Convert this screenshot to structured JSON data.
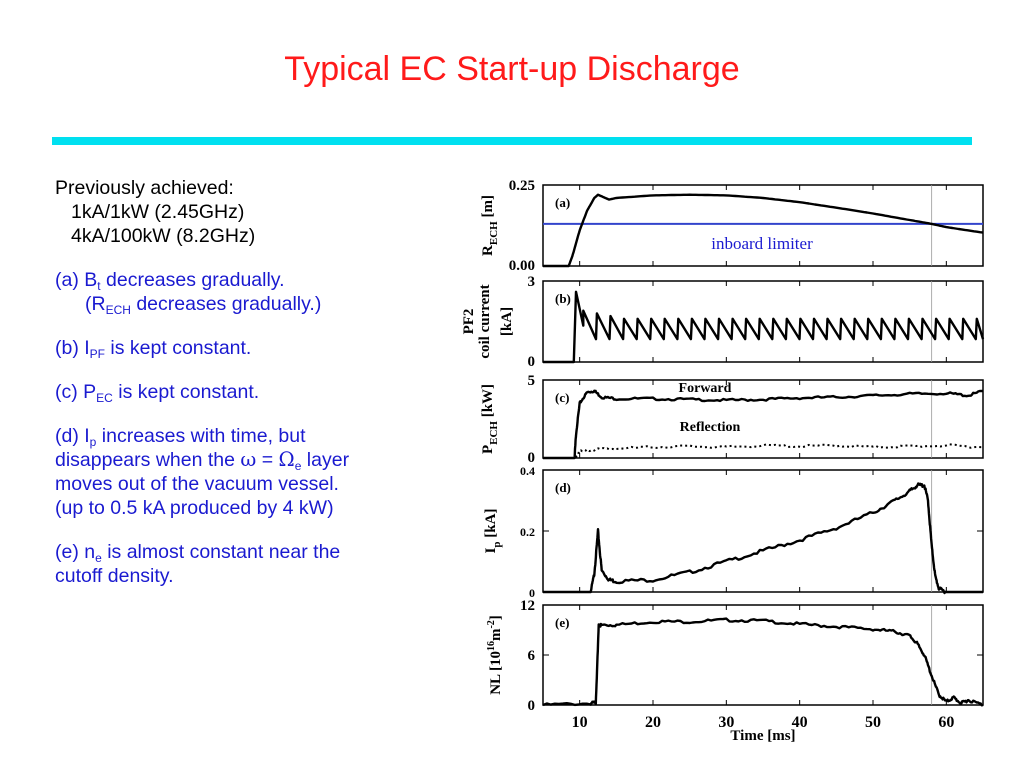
{
  "slide": {
    "title": "Typical EC Start-up Discharge",
    "accent_color": "#00e0f0",
    "title_color": "#ff1a1a",
    "text_color": "#1a1ad0"
  },
  "notes": {
    "prev_label": "Previously achieved:",
    "prev_1": "1kA/1kW (2.45GHz)",
    "prev_2": "4kA/100kW (8.2GHz)",
    "a_line1_pre": "(a) B",
    "a_line1_sub": "t",
    "a_line1_post": " decreases gradually.",
    "a_line2_pre": "(R",
    "a_line2_sub": "ECH",
    "a_line2_post": " decreases gradually.)",
    "b_pre": "(b) I",
    "b_sub": "PF",
    "b_post": " is kept constant.",
    "c_pre": "(c) P",
    "c_sub": "EC",
    "c_post": " is kept constant.",
    "d_pre": "(d) I",
    "d_sub": "p",
    "d_post": " increases with time, but",
    "d_line2_pre": "disappears when the ",
    "d_omega": "ω",
    "d_eq": " = ",
    "d_Omega": "Ω",
    "d_Omega_sub": "e",
    "d_line2_post": " layer",
    "d_line3": "moves out of the vacuum vessel.",
    "d_line4": "(up to 0.5 kA produced by 4 kW)",
    "e_pre": "(e) n",
    "e_sub": "e",
    "e_post": " is almost constant near the",
    "e_line2": "cutoff density."
  },
  "chart_data": {
    "type": "line",
    "x_label": "Time [ms]",
    "x_ticks": [
      10,
      20,
      30,
      40,
      50,
      60
    ],
    "xlim": [
      5,
      65
    ],
    "vertical_marker_x": 58,
    "panels": [
      {
        "id": "a",
        "tag": "(a)",
        "ylabel_main": "R",
        "ylabel_sub": "ECH",
        "ylabel_unit": "[m]",
        "yticks": [
          "0.25",
          "0.00"
        ],
        "ylim": [
          0,
          0.25
        ],
        "annotation": "inboard limiter",
        "limiter_value": 0.13,
        "limiter_color": "#3344cc",
        "series": [
          {
            "style": "solid",
            "x": [
              5,
              8.5,
              9,
              10,
              11,
              12,
              12.5,
              13,
              14,
              15,
              20,
              25,
              30,
              35,
              40,
              45,
              50,
              55,
              58,
              60,
              65
            ],
            "y": [
              0,
              0,
              0.03,
              0.11,
              0.17,
              0.21,
              0.22,
              0.215,
              0.205,
              0.21,
              0.218,
              0.22,
              0.218,
              0.21,
              0.197,
              0.18,
              0.162,
              0.142,
              0.13,
              0.12,
              0.103
            ]
          }
        ]
      },
      {
        "id": "b",
        "tag": "(b)",
        "ylabel_line1": "PF2",
        "ylabel_line2": "coil current",
        "ylabel_line3": "[kA]",
        "yticks": [
          "3",
          "0"
        ],
        "ylim": [
          0,
          3
        ],
        "series": [
          {
            "style": "sawtooth",
            "baseline_before": 0,
            "rise_at": 9.2,
            "peak": 2.6,
            "sawtooth_low": 0.85,
            "sawtooth_high": 1.6,
            "period_ms": 1.85,
            "start": 10.5,
            "end": 65
          }
        ]
      },
      {
        "id": "c",
        "tag": "(c)",
        "ylabel_main": "P",
        "ylabel_sub": "ECH",
        "ylabel_unit": "[kW]",
        "yticks": [
          "5",
          "0"
        ],
        "ylim": [
          0,
          5
        ],
        "series": [
          {
            "name": "Forward",
            "style": "solid",
            "x": [
              5,
              9.3,
              9.5,
              10,
              11,
              12,
              13,
              15,
              20,
              25,
              30,
              35,
              40,
              45,
              50,
              55,
              60,
              63,
              65
            ],
            "y": [
              0,
              0,
              1.5,
              3.5,
              4.2,
              4.3,
              3.9,
              3.8,
              3.8,
              3.75,
              3.7,
              3.75,
              3.85,
              3.9,
              4.0,
              4.1,
              4.15,
              4.0,
              4.3
            ]
          },
          {
            "name": "Reflection",
            "style": "dotted",
            "x": [
              5,
              9.3,
              10,
              12,
              15,
              20,
              25,
              30,
              35,
              40,
              45,
              50,
              55,
              60,
              65
            ],
            "y": [
              0,
              0,
              0.4,
              0.55,
              0.6,
              0.7,
              0.75,
              0.7,
              0.8,
              0.75,
              0.8,
              0.7,
              0.75,
              0.8,
              0.7
            ]
          }
        ]
      },
      {
        "id": "d",
        "tag": "(d)",
        "ylabel_main": "I",
        "ylabel_sub": "p",
        "ylabel_unit": "[kA]",
        "yticks": [
          "0.4",
          "0.2",
          "0"
        ],
        "ytick_values": [
          0.4,
          0.2,
          0
        ],
        "ylim": [
          0,
          0.4
        ],
        "series": [
          {
            "style": "solid",
            "x": [
              5,
              11.5,
              12,
              12.5,
              13,
              14,
              15,
              20,
              25,
              30,
              35,
              40,
              45,
              50,
              53,
              55,
              56,
              57,
              57.5,
              58,
              58.5,
              59,
              60,
              65
            ],
            "y": [
              0,
              0,
              0.06,
              0.2,
              0.07,
              0.04,
              0.035,
              0.04,
              0.065,
              0.1,
              0.135,
              0.17,
              0.21,
              0.26,
              0.3,
              0.33,
              0.35,
              0.35,
              0.3,
              0.15,
              0.05,
              0.01,
              0,
              0
            ]
          }
        ]
      },
      {
        "id": "e",
        "tag": "(e)",
        "ylabel_main": "NL [10",
        "ylabel_sup": "16",
        "ylabel_unit": "m",
        "ylabel_unit_sup": "-2",
        "ylabel_close": "]",
        "yticks": [
          "12",
          "6",
          "0"
        ],
        "ytick_values": [
          12,
          6,
          0
        ],
        "ylim": [
          0,
          12
        ],
        "series": [
          {
            "style": "solid",
            "x": [
              5,
              11.5,
              12.2,
              12.6,
              13,
              15,
              20,
              25,
              30,
              35,
              40,
              45,
              50,
              53,
              55,
              56,
              57,
              58,
              59,
              60,
              61,
              62,
              63,
              65
            ],
            "y": [
              0,
              0.2,
              0.3,
              9.5,
              9.6,
              9.6,
              10,
              10,
              10.2,
              10.1,
              9.7,
              9.4,
              9.1,
              8.8,
              8.3,
              7.4,
              6.0,
              3.5,
              1.2,
              0.4,
              0.9,
              0.2,
              0.6,
              0
            ]
          }
        ]
      }
    ]
  }
}
